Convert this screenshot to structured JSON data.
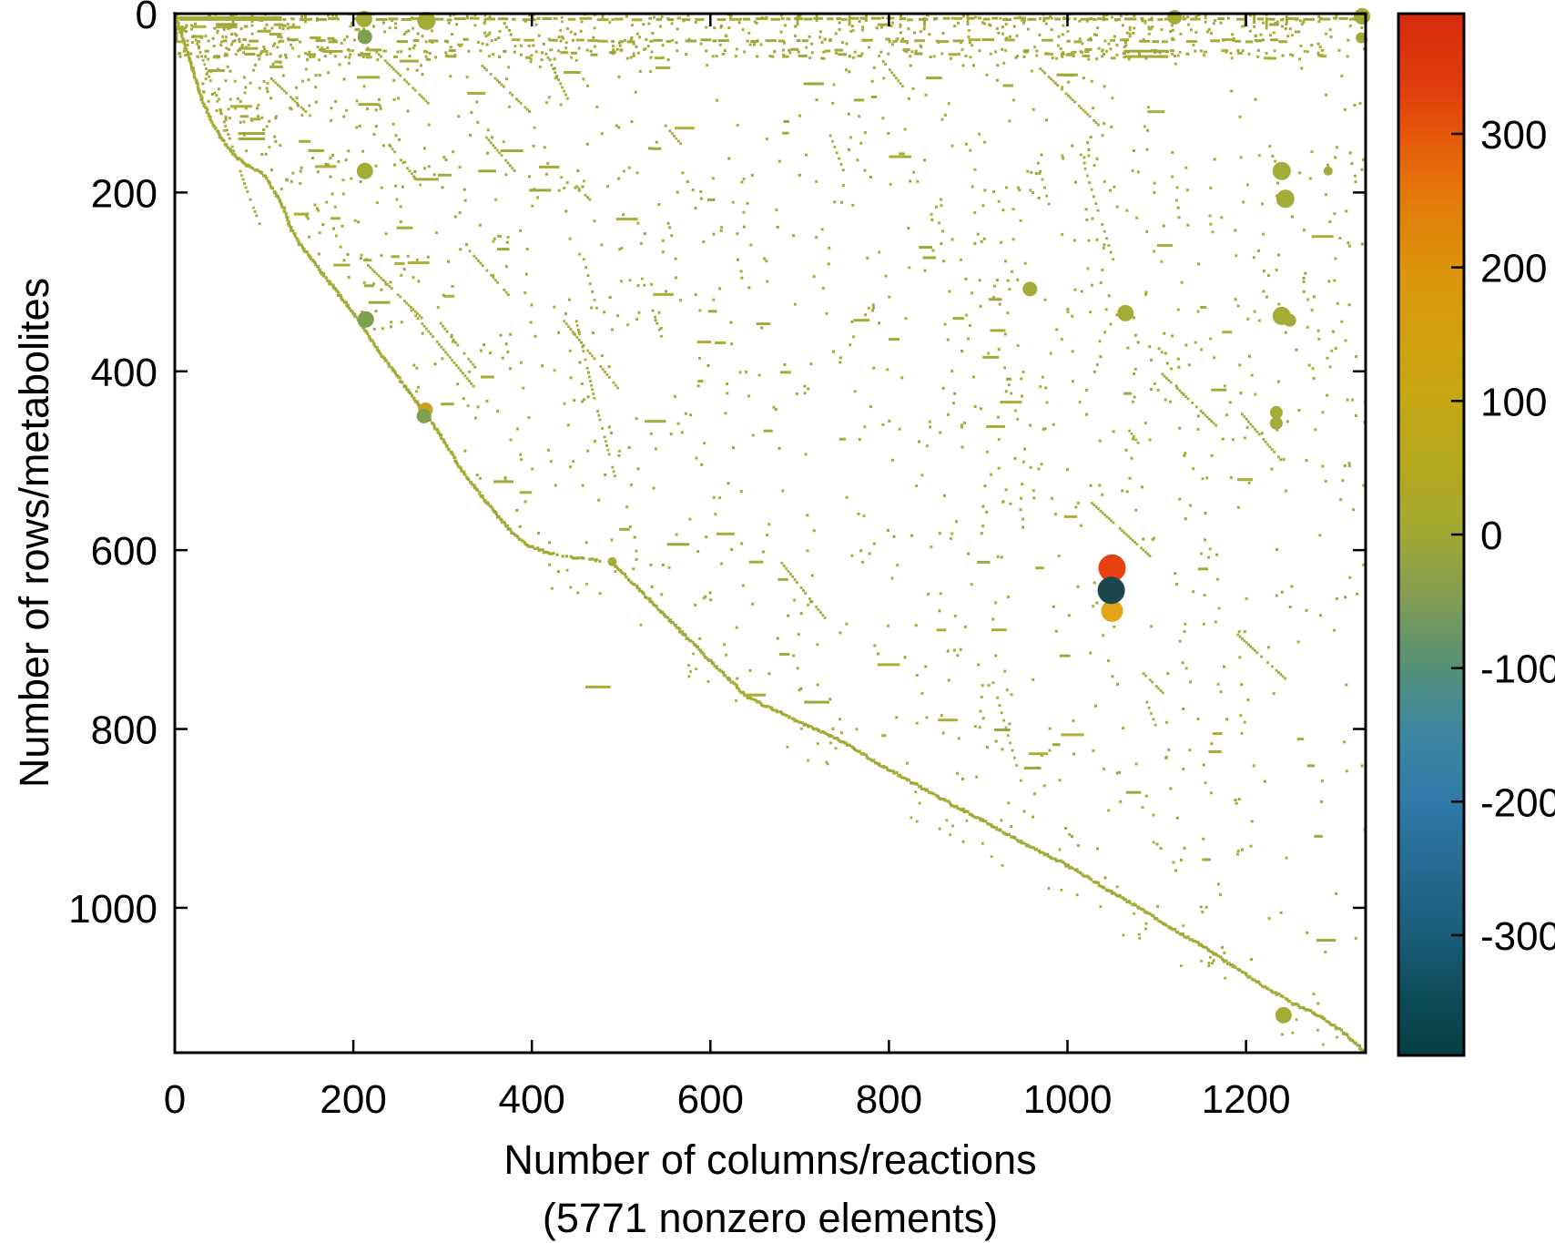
{
  "axes": {
    "xlabel_line1": "Number of columns/reactions",
    "xlabel_line2": "(5771 nonzero elements)",
    "ylabel": "Number of rows/metabolites",
    "x_ticks": [
      0,
      200,
      400,
      600,
      800,
      1000,
      1200
    ],
    "y_ticks": [
      0,
      200,
      400,
      600,
      800,
      1000
    ],
    "x_range": [
      0,
      1334
    ],
    "y_range": [
      0,
      1162
    ],
    "frame_color": "#000000"
  },
  "colorbar": {
    "range": [
      -390,
      390
    ],
    "ticks": [
      300,
      200,
      100,
      0,
      -100,
      -200,
      -300
    ],
    "gradient_stops": [
      {
        "o": 0.0,
        "c": "#d62b0e"
      },
      {
        "o": 0.077,
        "c": "#e0400c"
      },
      {
        "o": 0.115,
        "c": "#e6570a"
      },
      {
        "o": 0.18,
        "c": "#e37c08"
      },
      {
        "o": 0.244,
        "c": "#dc930c"
      },
      {
        "o": 0.308,
        "c": "#d2a010"
      },
      {
        "o": 0.372,
        "c": "#c4a713"
      },
      {
        "o": 0.436,
        "c": "#b4a91f"
      },
      {
        "o": 0.5,
        "c": "#a2a733"
      },
      {
        "o": 0.564,
        "c": "#809c55"
      },
      {
        "o": 0.628,
        "c": "#549078"
      },
      {
        "o": 0.692,
        "c": "#3d86a2"
      },
      {
        "o": 0.756,
        "c": "#2f7aa9"
      },
      {
        "o": 0.82,
        "c": "#256b92"
      },
      {
        "o": 0.885,
        "c": "#1a5d78"
      },
      {
        "o": 0.949,
        "c": "#0d4a57"
      },
      {
        "o": 1.0,
        "c": "#064041"
      }
    ]
  },
  "chart_data": {
    "type": "scatter",
    "subtype": "sparse-matrix-spy",
    "title": "",
    "xlabel": "Number of columns/reactions",
    "ylabel": "Number of rows/metabolites",
    "annotation": "(5771 nonzero elements)",
    "matrix": {
      "rows": 1162,
      "columns": 1334,
      "nonzero_elements": 5771
    },
    "value_range": [
      -390,
      390
    ],
    "point_colors": {
      "near_zero": "#a4ab36",
      "near_zero_b": "#9da73a",
      "near_zero_c": "#abae33",
      "green": "#7d9f4f",
      "gold": "#cfa21d"
    },
    "big_markers": [
      {
        "col": 1050,
        "row": 620,
        "value": 380,
        "color": "#e6410e",
        "r": 15
      },
      {
        "col": 1050,
        "row": 668,
        "value": 150,
        "color": "#e5a317",
        "r": 12
      },
      {
        "col": 1049,
        "row": 645,
        "value": -380,
        "color": "#19474c",
        "r": 15
      }
    ],
    "medium_markers": [
      {
        "col": 212,
        "row": 6,
        "r": 9,
        "color": "near_zero"
      },
      {
        "col": 282,
        "row": 8,
        "r": 10,
        "color": "near_zero"
      },
      {
        "col": 1120,
        "row": 4,
        "r": 8,
        "color": "near_zero"
      },
      {
        "col": 1330,
        "row": 3,
        "r": 9,
        "color": "near_zero"
      },
      {
        "col": 1329,
        "row": 27,
        "r": 6,
        "color": "near_zero"
      },
      {
        "col": 213,
        "row": 26,
        "r": 8,
        "color": "green"
      },
      {
        "col": 213,
        "row": 176,
        "r": 9,
        "color": "near_zero"
      },
      {
        "col": 958,
        "row": 308,
        "r": 8,
        "color": "near_zero"
      },
      {
        "col": 214,
        "row": 342,
        "r": 9,
        "color": "green"
      },
      {
        "col": 281,
        "row": 443,
        "r": 8,
        "color": "gold"
      },
      {
        "col": 279,
        "row": 450,
        "r": 8,
        "color": "green"
      },
      {
        "col": 490,
        "row": 613,
        "r": 5,
        "color": "near_zero"
      },
      {
        "col": 1065,
        "row": 335,
        "r": 9,
        "color": "near_zero"
      },
      {
        "col": 1240,
        "row": 338,
        "r": 10,
        "color": "near_zero"
      },
      {
        "col": 1249,
        "row": 343,
        "r": 7,
        "color": "near_zero"
      },
      {
        "col": 1240,
        "row": 176,
        "r": 10,
        "color": "near_zero"
      },
      {
        "col": 1244,
        "row": 207,
        "r": 10,
        "color": "near_zero"
      },
      {
        "col": 1292,
        "row": 176,
        "r": 5,
        "color": "near_zero"
      },
      {
        "col": 1234,
        "row": 446,
        "r": 7,
        "color": "near_zero"
      },
      {
        "col": 1234,
        "row": 458,
        "r": 7,
        "color": "near_zero"
      },
      {
        "col": 1242,
        "row": 1120,
        "r": 9,
        "color": "near_zero"
      }
    ],
    "envelope": [
      [
        0,
        0
      ],
      [
        10,
        30
      ],
      [
        20,
        62
      ],
      [
        30,
        95
      ],
      [
        40,
        118
      ],
      [
        52,
        140
      ],
      [
        66,
        158
      ],
      [
        82,
        170
      ],
      [
        100,
        180
      ],
      [
        112,
        200
      ],
      [
        122,
        218
      ],
      [
        130,
        240
      ],
      [
        140,
        258
      ],
      [
        152,
        272
      ],
      [
        165,
        290
      ],
      [
        178,
        306
      ],
      [
        190,
        322
      ],
      [
        205,
        342
      ],
      [
        218,
        362
      ],
      [
        232,
        382
      ],
      [
        246,
        400
      ],
      [
        260,
        420
      ],
      [
        272,
        436
      ],
      [
        284,
        452
      ],
      [
        298,
        472
      ],
      [
        310,
        492
      ],
      [
        322,
        512
      ],
      [
        335,
        528
      ],
      [
        348,
        545
      ],
      [
        362,
        562
      ],
      [
        378,
        580
      ],
      [
        396,
        595
      ],
      [
        418,
        603
      ],
      [
        448,
        608
      ],
      [
        490,
        614
      ],
      [
        520,
        644
      ],
      [
        555,
        679
      ],
      [
        590,
        714
      ],
      [
        620,
        744
      ],
      [
        641,
        764
      ],
      [
        668,
        777
      ],
      [
        695,
        790
      ],
      [
        722,
        802
      ],
      [
        753,
        817
      ],
      [
        790,
        840
      ],
      [
        830,
        862
      ],
      [
        870,
        884
      ],
      [
        905,
        902
      ],
      [
        940,
        922
      ],
      [
        975,
        940
      ],
      [
        1010,
        958
      ],
      [
        1045,
        980
      ],
      [
        1080,
        1000
      ],
      [
        1115,
        1022
      ],
      [
        1150,
        1042
      ],
      [
        1185,
        1065
      ],
      [
        1220,
        1088
      ],
      [
        1255,
        1108
      ],
      [
        1285,
        1122
      ],
      [
        1310,
        1140
      ],
      [
        1334,
        1162
      ]
    ],
    "secondary_curves": [
      [
        [
          22,
          25
        ],
        [
          40,
          75
        ],
        [
          60,
          135
        ],
        [
          78,
          190
        ],
        [
          95,
          235
        ]
      ],
      [
        [
          416,
          45
        ],
        [
          428,
          70
        ],
        [
          440,
          95
        ]
      ],
      [
        [
          450,
          344
        ],
        [
          470,
          430
        ],
        [
          493,
          517
        ]
      ],
      [
        [
          1067,
          463
        ],
        [
          1079,
          480
        ]
      ]
    ],
    "explicit_dashes": [
      {
        "x": 46,
        "y": 12,
        "len": 24
      },
      {
        "x": 46,
        "y": 15,
        "len": 24
      },
      {
        "x": 71,
        "y": 134,
        "len": 30
      },
      {
        "x": 71,
        "y": 140,
        "len": 30
      },
      {
        "x": 340,
        "y": 176,
        "len": 20
      },
      {
        "x": 1063,
        "y": 42,
        "len": 50
      },
      {
        "x": 1063,
        "y": 48,
        "len": 50
      },
      {
        "x": 460,
        "y": 753,
        "len": 28
      },
      {
        "x": 640,
        "y": 762,
        "len": 22
      },
      {
        "x": 705,
        "y": 770,
        "len": 28
      },
      {
        "x": 855,
        "y": 790,
        "len": 22
      },
      {
        "x": 918,
        "y": 801,
        "len": 18
      },
      {
        "x": 560,
        "y": 128,
        "len": 22
      },
      {
        "x": 800,
        "y": 160,
        "len": 25
      }
    ],
    "vertical_runs": [
      {
        "x": 2,
        "y0": 0,
        "y1": 32
      },
      {
        "x": 1070,
        "y0": 13,
        "y1": 23
      },
      {
        "x": 213,
        "y0": 0,
        "y1": 12
      }
    ],
    "bands": [
      {
        "row": 6,
        "gap_p": 0.08,
        "jitter": 1.0
      },
      {
        "row": 30,
        "gap_p": 0.3,
        "jitter": 1.5
      }
    ],
    "generator": {
      "seed": 1337,
      "main_points": 1250,
      "right_boost": 190,
      "top_scatter": 300,
      "mid_scatter": 240,
      "band3_dashes": 150,
      "below_points": 65,
      "dashes": 120,
      "diag_runs": 20,
      "steep_runs": 8,
      "vertical_cols": 34
    }
  }
}
